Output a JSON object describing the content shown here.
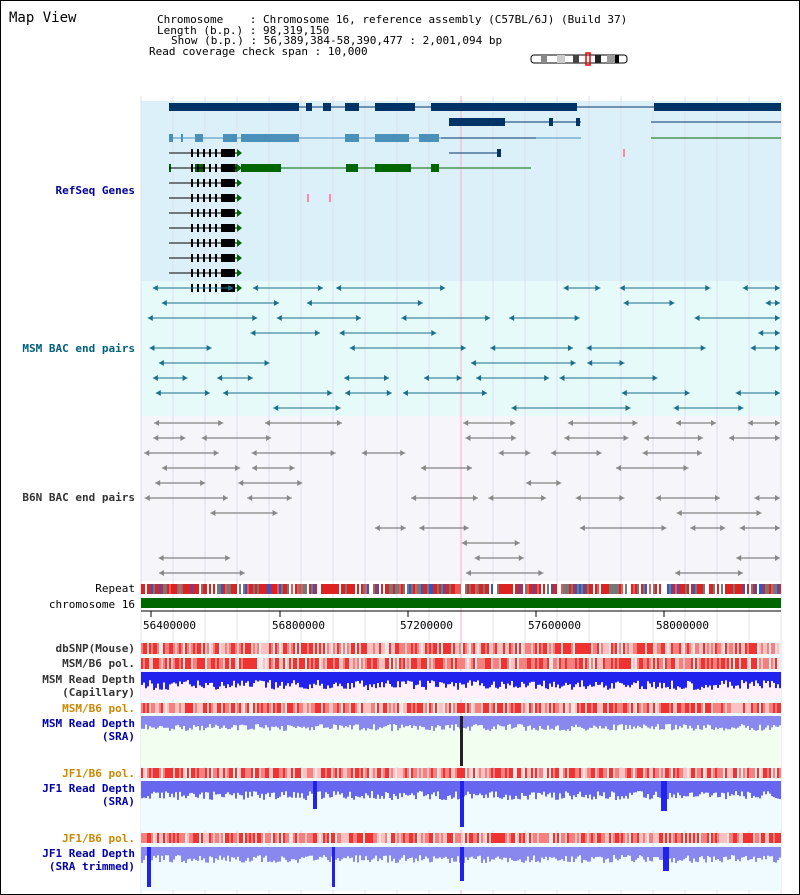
{
  "title": "Map View",
  "info": {
    "chromosome_label": "Chromosome",
    "chromosome_value": "Chromosome 16, reference assembly (C57BL/6J) (Build 37)",
    "length_label": "Length (b.p.)",
    "length_value": "98,319,150",
    "show_label": "Show (b.p.)",
    "show_value": "56,389,384-58,390,477 : 2,001,094 bp",
    "coverage_label": "Read coverage check span",
    "coverage_value": "10,000"
  },
  "tracks": {
    "refseq": "RefSeq Genes",
    "msm_bac": "MSM BAC end pairs",
    "b6n_bac": "B6N BAC end pairs",
    "repeat": "Repeat",
    "chromosome": "chromosome 16",
    "dbsnp": "dbSNP(Mouse)",
    "msm_b6_pol_1": "MSM/B6 pol.",
    "msm_depth_cap_1": "MSM Read Depth",
    "msm_depth_cap_2": "(Capillary)",
    "msm_b6_pol_2": "MSM/B6 pol.",
    "msm_depth_sra_1": "MSM Read Depth",
    "msm_depth_sra_2": "(SRA)",
    "jf1_b6_pol_1": "JF1/B6 pol.",
    "jf1_depth_sra_1": "JF1 Read Depth",
    "jf1_depth_sra_2": "(SRA)",
    "jf1_b6_pol_2": "JF1/B6 pol.",
    "jf1_depth_trim_1": "JF1 Read Depth",
    "jf1_depth_trim_2": "(SRA trimmed)"
  },
  "axis_ticks": [
    "56400000",
    "56800000",
    "57200000",
    "57600000",
    "58000000"
  ],
  "colors": {
    "refseq_bg": "#dcf0fa",
    "bac_bg": "#e6fafa",
    "b6n_bg": "#f5f5fa",
    "gene_navy": "#003366",
    "gene_steel": "#4a90b8",
    "gene_green": "#006600",
    "msm_teal": "#1a6f8a",
    "b6n_grey": "#666666",
    "chrom_green": "#006600",
    "depth_blue": "#2222ee",
    "depth_light": "#8888ee"
  }
}
